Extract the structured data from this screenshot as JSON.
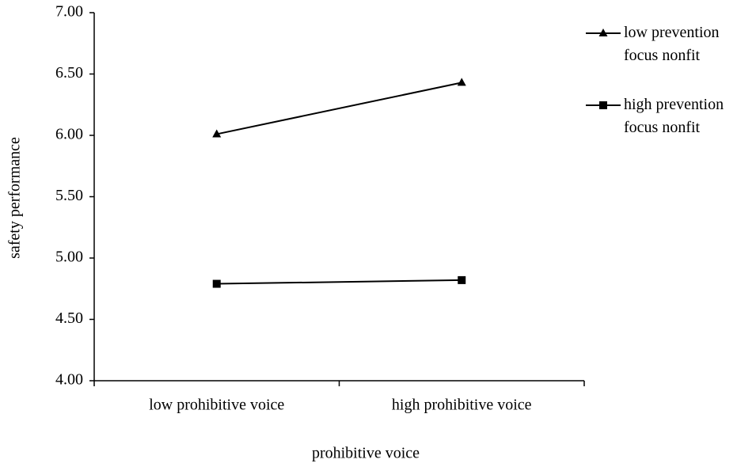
{
  "chart_data": {
    "type": "line",
    "x_label": "prohibitive voice",
    "y_label": "safety performance",
    "categories": [
      "low prohibitive voice",
      "high prohibitive voice"
    ],
    "series": [
      {
        "name": "low prevention focus nonfit",
        "color": "#000000",
        "marker": "triangle",
        "values": [
          6.01,
          6.43
        ]
      },
      {
        "name": "high prevention focus nonfit",
        "color": "#000000",
        "marker": "square",
        "values": [
          4.79,
          4.82
        ]
      }
    ],
    "ylim": [
      4,
      7
    ],
    "yticks": [
      {
        "value": 4,
        "label": "4.00"
      },
      {
        "value": 4.5,
        "label": "4.50"
      },
      {
        "value": 5,
        "label": "5.00"
      },
      {
        "value": 5.5,
        "label": "5.50"
      },
      {
        "value": 6,
        "label": "6.00"
      },
      {
        "value": 6.5,
        "label": "6.50"
      },
      {
        "value": 7,
        "label": "7.00"
      }
    ],
    "legend": "right"
  }
}
